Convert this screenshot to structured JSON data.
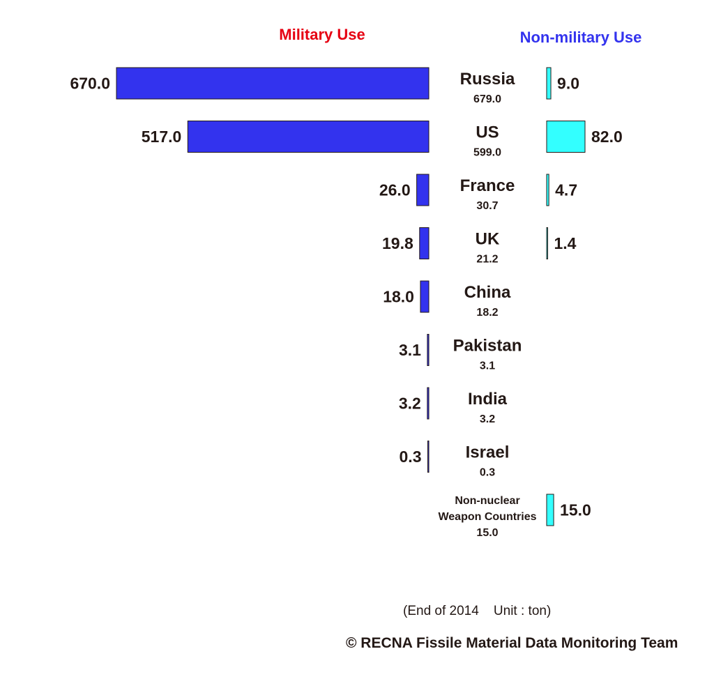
{
  "chart_data": {
    "type": "bar",
    "military_header": "Military Use",
    "nonmilitary_header": "Non-military Use",
    "colors": {
      "military": "#3333ee",
      "nonmilitary": "#33ffff",
      "military_header": "#e60012",
      "nonmilitary_header": "#3333ee"
    },
    "rows": [
      {
        "country": "Russia",
        "total": "679.0",
        "military": 670.0,
        "military_label": "670.0",
        "nonmilitary": 9.0,
        "nonmilitary_label": "9.0"
      },
      {
        "country": "US",
        "total": "599.0",
        "military": 517.0,
        "military_label": "517.0",
        "nonmilitary": 82.0,
        "nonmilitary_label": "82.0"
      },
      {
        "country": "France",
        "total": "30.7",
        "military": 26.0,
        "military_label": "26.0",
        "nonmilitary": 4.7,
        "nonmilitary_label": "4.7"
      },
      {
        "country": "UK",
        "total": "21.2",
        "military": 19.8,
        "military_label": "19.8",
        "nonmilitary": 1.4,
        "nonmilitary_label": "1.4"
      },
      {
        "country": "China",
        "total": "18.2",
        "military": 18.0,
        "military_label": "18.0",
        "nonmilitary": null,
        "nonmilitary_label": ""
      },
      {
        "country": "Pakistan",
        "total": "3.1",
        "military": 3.1,
        "military_label": "3.1",
        "nonmilitary": null,
        "nonmilitary_label": ""
      },
      {
        "country": "India",
        "total": "3.2",
        "military": 3.2,
        "military_label": "3.2",
        "nonmilitary": null,
        "nonmilitary_label": ""
      },
      {
        "country": "Israel",
        "total": "0.3",
        "military": 0.3,
        "military_label": "0.3",
        "nonmilitary": null,
        "nonmilitary_label": ""
      },
      {
        "country_lines": [
          "Non-nuclear",
          "Weapon Countries"
        ],
        "country": "Non-nuclear Weapon Countries",
        "total": "15.0",
        "military": null,
        "military_label": "",
        "nonmilitary": 15.0,
        "nonmilitary_label": "15.0"
      }
    ]
  },
  "footer": {
    "note": "(End of 2014    Unit : ton)",
    "credit": "© RECNA Fissile Material Data Monitoring Team"
  }
}
